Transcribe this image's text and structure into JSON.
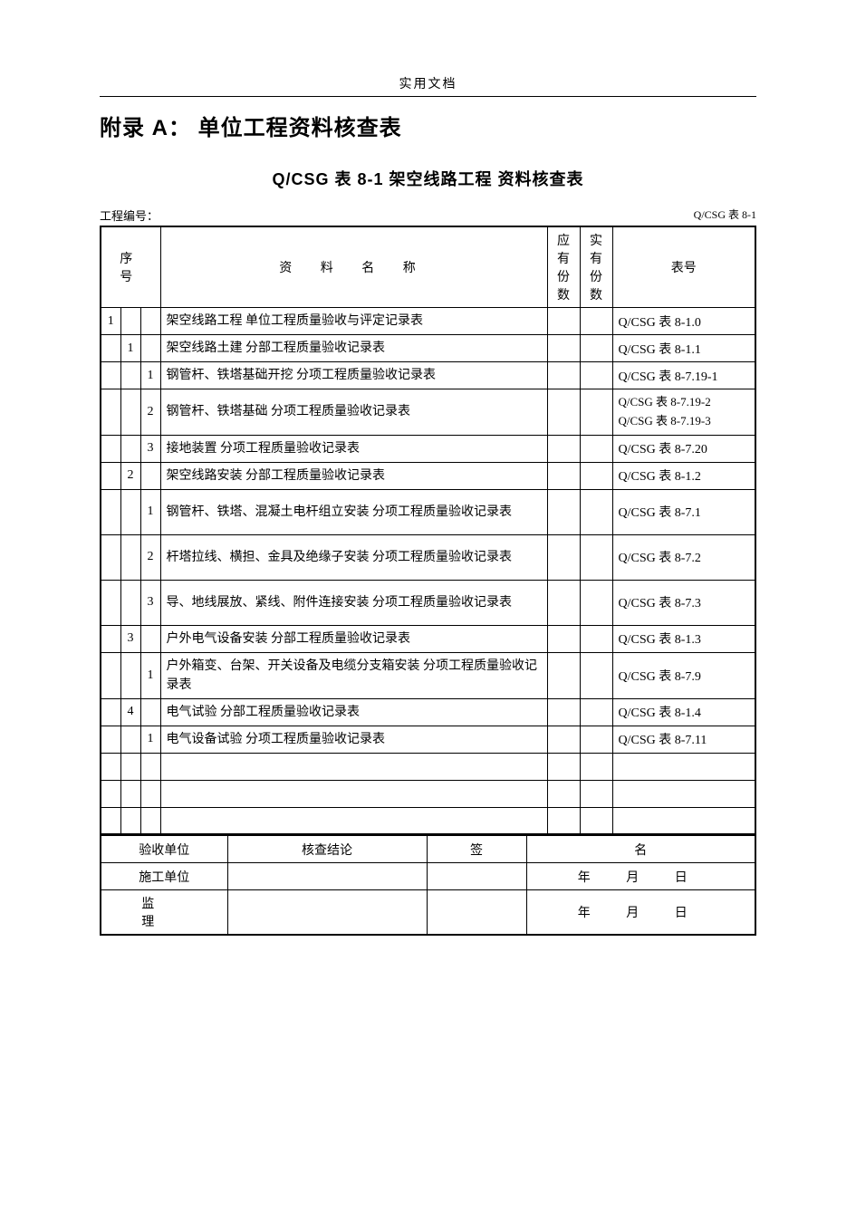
{
  "doc_label": "实用文档",
  "main_title": "附录 A：  单位工程资料核查表",
  "sub_title": "Q/CSG 表 8-1   架空线路工程   资料核查表",
  "meta": {
    "project_no_label": "工程编号：",
    "table_code": "Q/CSG 表 8-1"
  },
  "headers": {
    "seq": "序 号",
    "name": "资 料 名 称",
    "required_copies": "应有份数",
    "actual_copies": "实有份数",
    "table_no": "表号"
  },
  "rows": [
    {
      "l1": "1",
      "l2": "",
      "l3": "",
      "name": "架空线路工程   单位工程质量验收与评定记录表",
      "ref": "Q/CSG 表 8-1.0"
    },
    {
      "l1": "",
      "l2": "1",
      "l3": "",
      "name": "架空线路土建   分部工程质量验收记录表",
      "ref": "Q/CSG 表 8-1.1"
    },
    {
      "l1": "",
      "l2": "",
      "l3": "1",
      "name": "钢管杆、铁塔基础开挖   分项工程质量验收记录表",
      "ref": "Q/CSG 表 8-7.19-1"
    },
    {
      "l1": "",
      "l2": "",
      "l3": "2",
      "name": "钢管杆、铁塔基础   分项工程质量验收记录表",
      "ref": "Q/CSG 表 8-7.19-2\nQ/CSG 表 8-7.19-3",
      "multi": true
    },
    {
      "l1": "",
      "l2": "",
      "l3": "3",
      "name": "接地装置   分项工程质量验收记录表",
      "ref": "Q/CSG 表 8-7.20"
    },
    {
      "l1": "",
      "l2": "2",
      "l3": "",
      "name": "架空线路安装   分部工程质量验收记录表",
      "ref": "Q/CSG 表 8-1.2"
    },
    {
      "l1": "",
      "l2": "",
      "l3": "1",
      "name": "钢管杆、铁塔、混凝土电杆组立安装   分项工程质量验收记录表",
      "ref": "Q/CSG 表 8-7.1",
      "tall": true
    },
    {
      "l1": "",
      "l2": "",
      "l3": "2",
      "name": "杆塔拉线、横担、金具及绝缘子安装   分项工程质量验收记录表",
      "ref": "Q/CSG 表 8-7.2",
      "tall": true
    },
    {
      "l1": "",
      "l2": "",
      "l3": "3",
      "name": "导、地线展放、紧线、附件连接安装   分项工程质量验收记录表",
      "ref": "Q/CSG 表 8-7.3",
      "tall": true
    },
    {
      "l1": "",
      "l2": "3",
      "l3": "",
      "name": "户外电气设备安装   分部工程质量验收记录表",
      "ref": "Q/CSG 表 8-1.3"
    },
    {
      "l1": "",
      "l2": "",
      "l3": "1",
      "name": "户外箱变、台架、开关设备及电缆分支箱安装   分项工程质量验收记录表",
      "ref": "Q/CSG 表 8-7.9",
      "tall": true
    },
    {
      "l1": "",
      "l2": "4",
      "l3": "",
      "name": "电气试验   分部工程质量验收记录表",
      "ref": "Q/CSG 表 8-1.4"
    },
    {
      "l1": "",
      "l2": "",
      "l3": "1",
      "name": "电气设备试验   分项工程质量验收记录表",
      "ref": "Q/CSG 表 8-7.11"
    }
  ],
  "empty_rows": 3,
  "footer": {
    "accept_unit": "验收单位",
    "conclusion": "核查结论",
    "sign": "签",
    "name": "名",
    "construct_unit": "施工单位",
    "supervise": "监    理",
    "date_tmpl": "年 月 日"
  }
}
